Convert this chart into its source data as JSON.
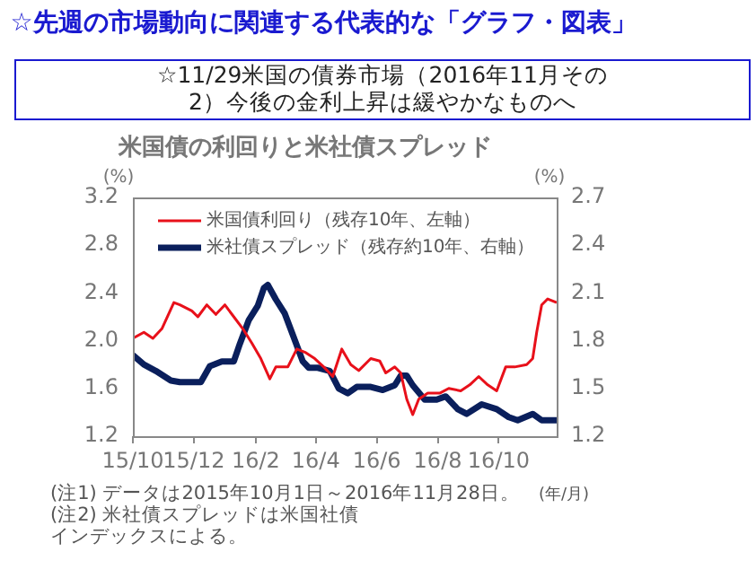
{
  "chart_data": {
    "type": "line",
    "title": "米国債の利回りと米社債スプレッド",
    "subtitle": "☆11/29米国の債券市場（2016年11月その2）今後の金利上昇は緩やかなものへ",
    "ylabel": "(%)",
    "y2label": "(%)",
    "annotations": [
      "☆先週の市場動向に関連する代表的な「グラフ・図表」",
      "(年/月)",
      "(注1) データは2015年10月1日～2016年11月28日。",
      "(注2) 米社債スプレッドは米国社債インデックスによる。"
    ],
    "xlim": [
      "2015-10-01",
      "2016-11-28"
    ],
    "xticks": [
      {
        "value": "2015-10-01",
        "label": "15/10"
      },
      {
        "value": "2015-12-01",
        "label": "15/12"
      },
      {
        "value": "2016-02-01",
        "label": "16/2"
      },
      {
        "value": "2016-04-01",
        "label": "16/4"
      },
      {
        "value": "2016-06-01",
        "label": "16/6"
      },
      {
        "value": "2016-08-01",
        "label": "16/8"
      },
      {
        "value": "2016-10-01",
        "label": "16/10"
      }
    ],
    "ylim": [
      1.2,
      3.2
    ],
    "yticks": [
      1.2,
      1.6,
      {
        "value": 2.0,
        "label": "2.0"
      },
      2.4,
      2.8,
      3.2
    ],
    "y2lim": [
      1.2,
      2.7
    ],
    "y2ticks": [
      1.2,
      1.5,
      1.8,
      2.1,
      2.4,
      2.7
    ],
    "grid": false,
    "legend": "top left",
    "marker": "none",
    "line_style": "solid",
    "series": [
      {
        "name": "米国債利回り（残存10年、左軸）",
        "color": "#e8101a",
        "axis": "y",
        "x": [
          "2015-10-01",
          "2015-10-12",
          "2015-10-21",
          "2015-10-30",
          "2015-11-11",
          "2015-11-17",
          "2015-11-29",
          "2015-12-05",
          "2015-12-14",
          "2015-12-23",
          "2016-01-01",
          "2016-01-10",
          "2016-01-19",
          "2016-01-28",
          "2016-02-06",
          "2016-02-15",
          "2016-02-21",
          "2016-03-04",
          "2016-03-13",
          "2016-03-22",
          "2016-03-31",
          "2016-04-09",
          "2016-04-18",
          "2016-04-27",
          "2016-05-06",
          "2016-05-14",
          "2016-05-26",
          "2016-06-04",
          "2016-06-10",
          "2016-06-19",
          "2016-06-25",
          "2016-07-01",
          "2016-07-07",
          "2016-07-13",
          "2016-07-22",
          "2016-08-03",
          "2016-08-12",
          "2016-08-24",
          "2016-09-02",
          "2016-09-11",
          "2016-09-20",
          "2016-09-29",
          "2016-10-08",
          "2016-10-17",
          "2016-10-29",
          "2016-11-04",
          "2016-11-08",
          "2016-11-13",
          "2016-11-19",
          "2016-11-28"
        ],
        "values": [
          2.02,
          2.07,
          2.02,
          2.1,
          2.32,
          2.3,
          2.25,
          2.2,
          2.3,
          2.22,
          2.3,
          2.2,
          2.1,
          1.98,
          1.85,
          1.68,
          1.78,
          1.78,
          1.93,
          1.9,
          1.85,
          1.78,
          1.7,
          1.93,
          1.8,
          1.75,
          1.85,
          1.83,
          1.73,
          1.78,
          1.73,
          1.51,
          1.38,
          1.51,
          1.56,
          1.56,
          1.6,
          1.58,
          1.63,
          1.7,
          1.63,
          1.58,
          1.78,
          1.78,
          1.8,
          1.85,
          2.07,
          2.3,
          2.35,
          2.32
        ]
      },
      {
        "name": "米社債スプレッド（残存約10年、右軸）",
        "color": "#0a1f5c",
        "axis": "y2",
        "x": [
          "2015-10-01",
          "2015-10-12",
          "2015-10-24",
          "2015-11-08",
          "2015-11-17",
          "2015-12-08",
          "2015-12-17",
          "2015-12-29",
          "2016-01-10",
          "2016-01-16",
          "2016-01-25",
          "2016-02-03",
          "2016-02-09",
          "2016-02-13",
          "2016-02-21",
          "2016-03-01",
          "2016-03-10",
          "2016-03-19",
          "2016-03-25",
          "2016-04-03",
          "2016-04-15",
          "2016-04-24",
          "2016-05-03",
          "2016-05-12",
          "2016-05-26",
          "2016-06-07",
          "2016-06-19",
          "2016-06-25",
          "2016-07-01",
          "2016-07-07",
          "2016-07-19",
          "2016-07-31",
          "2016-08-09",
          "2016-08-21",
          "2016-08-30",
          "2016-09-14",
          "2016-09-29",
          "2016-10-11",
          "2016-10-20",
          "2016-11-04",
          "2016-11-13",
          "2016-11-28"
        ],
        "values": [
          1.71,
          1.65,
          1.61,
          1.55,
          1.54,
          1.54,
          1.64,
          1.67,
          1.67,
          1.78,
          1.93,
          2.02,
          2.13,
          2.15,
          2.06,
          1.97,
          1.82,
          1.67,
          1.63,
          1.63,
          1.61,
          1.5,
          1.47,
          1.51,
          1.51,
          1.49,
          1.52,
          1.58,
          1.58,
          1.52,
          1.43,
          1.43,
          1.45,
          1.37,
          1.34,
          1.4,
          1.37,
          1.32,
          1.3,
          1.34,
          1.3,
          1.3
        ]
      }
    ]
  }
}
